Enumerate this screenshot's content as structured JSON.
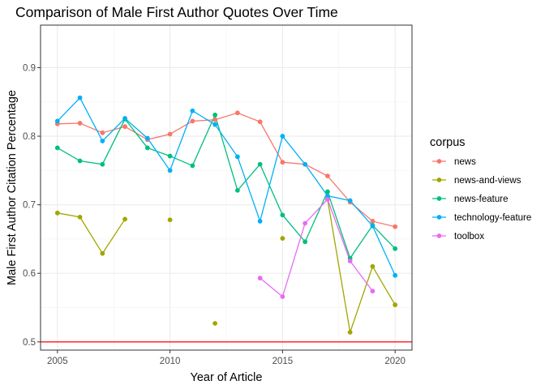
{
  "chart_data": {
    "type": "line",
    "title": "Comparison of Male First Author Quotes Over Time",
    "xlabel": "Year of Article",
    "ylabel": "Male First Author Citation Percentage",
    "xlim": [
      2004.25,
      2020.75
    ],
    "ylim": [
      0.488,
      0.962
    ],
    "x_ticks": [
      2005,
      2010,
      2015,
      2020
    ],
    "y_ticks": [
      0.5,
      0.6,
      0.7,
      0.8,
      0.9
    ],
    "x_tick_labels": [
      "2005",
      "2010",
      "2015",
      "2020"
    ],
    "y_tick_labels": [
      "0.5",
      "0.6",
      "0.7",
      "0.8",
      "0.9"
    ],
    "grid": true,
    "legend": {
      "title": "corpus",
      "position": "right"
    },
    "hline": {
      "y": 0.5,
      "color": "#ff0000"
    },
    "series": [
      {
        "name": "news",
        "color": "#F8766D",
        "points": [
          [
            2005,
            0.818
          ],
          [
            2006,
            0.819
          ],
          [
            2007,
            0.805
          ],
          [
            2008,
            0.814
          ],
          [
            2009,
            0.795
          ],
          [
            2010,
            0.803
          ],
          [
            2011,
            0.822
          ],
          [
            2012,
            0.824
          ],
          [
            2013,
            0.834
          ],
          [
            2014,
            0.821
          ],
          [
            2015,
            0.762
          ],
          [
            2016,
            0.759
          ],
          [
            2017,
            0.742
          ],
          [
            2018,
            0.704
          ],
          [
            2019,
            0.676
          ],
          [
            2020,
            0.668
          ]
        ]
      },
      {
        "name": "news-and-views",
        "color": "#A3A500",
        "points": [
          [
            2005,
            0.688
          ],
          [
            2006,
            0.682
          ],
          [
            2007,
            0.629
          ],
          [
            2008,
            0.679
          ],
          [
            2009,
            null
          ],
          [
            2010,
            0.678
          ],
          [
            2011,
            null
          ],
          [
            2012,
            0.527
          ],
          [
            2013,
            null
          ],
          [
            2014,
            null
          ],
          [
            2015,
            0.651
          ],
          [
            2016,
            null
          ],
          [
            2017,
            0.708
          ],
          [
            2018,
            0.514
          ],
          [
            2019,
            0.61
          ],
          [
            2020,
            0.554
          ]
        ]
      },
      {
        "name": "news-feature",
        "color": "#00BF7D",
        "points": [
          [
            2005,
            0.783
          ],
          [
            2006,
            0.764
          ],
          [
            2007,
            0.759
          ],
          [
            2008,
            0.825
          ],
          [
            2009,
            0.783
          ],
          [
            2010,
            0.771
          ],
          [
            2011,
            0.757
          ],
          [
            2012,
            0.831
          ],
          [
            2013,
            0.721
          ],
          [
            2014,
            0.759
          ],
          [
            2015,
            0.685
          ],
          [
            2016,
            0.646
          ],
          [
            2017,
            0.719
          ],
          [
            2018,
            0.622
          ],
          [
            2019,
            0.67
          ],
          [
            2020,
            0.636
          ]
        ]
      },
      {
        "name": "technology-feature",
        "color": "#00B0F6",
        "points": [
          [
            2005,
            0.822
          ],
          [
            2006,
            0.856
          ],
          [
            2007,
            0.793
          ],
          [
            2008,
            0.826
          ],
          [
            2009,
            0.797
          ],
          [
            2010,
            0.75
          ],
          [
            2011,
            0.837
          ],
          [
            2012,
            0.817
          ],
          [
            2013,
            0.77
          ],
          [
            2014,
            0.676
          ],
          [
            2015,
            0.8
          ],
          [
            2016,
            0.759
          ],
          [
            2017,
            0.713
          ],
          [
            2018,
            0.706
          ],
          [
            2019,
            0.669
          ],
          [
            2020,
            0.597
          ]
        ]
      },
      {
        "name": "toolbox",
        "color": "#E76BF3",
        "points": [
          [
            2014,
            0.593
          ],
          [
            2015,
            0.566
          ],
          [
            2016,
            0.673
          ],
          [
            2017,
            0.708
          ],
          [
            2018,
            0.618
          ],
          [
            2019,
            0.574
          ]
        ]
      }
    ]
  }
}
